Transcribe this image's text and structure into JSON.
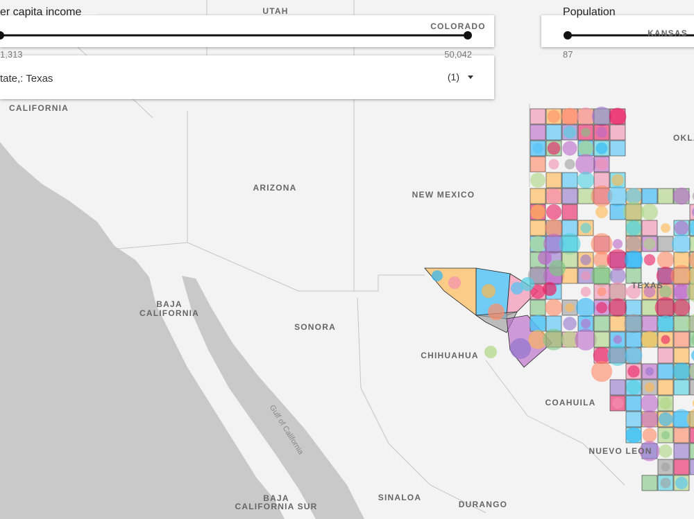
{
  "income_slider": {
    "title": "er capita income",
    "min_label": "1,313",
    "max_label": "50,042"
  },
  "population_slider": {
    "title": "Population",
    "min_label": "87"
  },
  "state_filter": {
    "label": "tate,: Texas",
    "count": "(1)"
  },
  "map_labels": {
    "utah": "UTAH",
    "colorado": "COLORADO",
    "kansas": "KANSAS",
    "california": "CALIFORNIA",
    "arizona": "ARIZONA",
    "new_mexico": "NEW MEXICO",
    "oklahoma": "OKLA",
    "texas": "TEXAS",
    "baja_california_1": "BAJA",
    "baja_california_2": "CALIFORNIA",
    "sonora": "SONORA",
    "chihuahua": "CHIHUAHUA",
    "coahuila": "COAHUILA",
    "nuevo_leon": "NUEVO LEON",
    "baja_sur_1": "BAJA",
    "baja_sur_2": "CALIFORNIA SUR",
    "sinaloa": "SINALOA",
    "durango": "DURANGO",
    "gulf": "Gulf of California"
  }
}
